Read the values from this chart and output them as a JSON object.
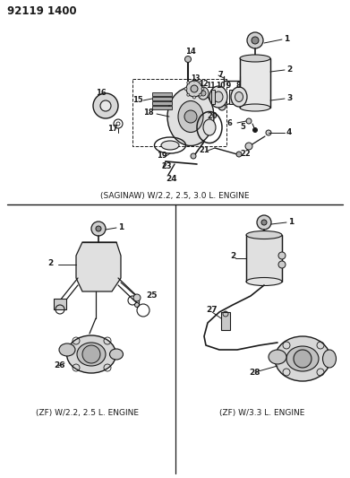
{
  "title_code": "92119 1400",
  "bg_color": "#ffffff",
  "line_color": "#1a1a1a",
  "gray_color": "#888888",
  "caption_top": "(SAGINAW) W/2.2, 2.5, 3.0 L. ENGINE",
  "caption_bottom_left": "(ZF) W/2.2, 2.5 L. ENGINE",
  "caption_bottom_right": "(ZF) W/3.3 L. ENGINE",
  "fig_w": 3.91,
  "fig_h": 5.33,
  "dpi": 100
}
